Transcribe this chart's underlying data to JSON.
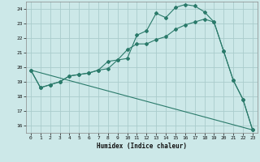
{
  "xlabel": "Humidex (Indice chaleur)",
  "bg_color": "#cce8e8",
  "grid_color": "#aacccc",
  "line_color": "#2a7a6a",
  "xlim": [
    -0.5,
    23.5
  ],
  "ylim": [
    15.5,
    24.5
  ],
  "xticks": [
    0,
    1,
    2,
    3,
    4,
    5,
    6,
    7,
    8,
    9,
    10,
    11,
    12,
    13,
    14,
    15,
    16,
    17,
    18,
    19,
    20,
    21,
    22,
    23
  ],
  "yticks": [
    16,
    17,
    18,
    19,
    20,
    21,
    22,
    23,
    24
  ],
  "line1_x": [
    0,
    1,
    2,
    3,
    4,
    5,
    6,
    7,
    8,
    9,
    10,
    11,
    12,
    13,
    14,
    15,
    16,
    17,
    18,
    19,
    20,
    21,
    22,
    23
  ],
  "line1_y": [
    19.8,
    18.6,
    18.8,
    19.0,
    19.4,
    19.5,
    19.6,
    19.8,
    19.9,
    20.5,
    20.6,
    22.2,
    22.5,
    23.7,
    23.4,
    24.1,
    24.3,
    24.2,
    23.8,
    23.1,
    21.1,
    19.1,
    17.8,
    15.7
  ],
  "line2_x": [
    0,
    1,
    2,
    3,
    4,
    5,
    6,
    7,
    8,
    9,
    10,
    11,
    12,
    13,
    14,
    15,
    16,
    17,
    18,
    19,
    20,
    21,
    22,
    23
  ],
  "line2_y": [
    19.8,
    18.6,
    18.8,
    19.0,
    19.4,
    19.5,
    19.6,
    19.8,
    20.4,
    20.5,
    21.2,
    21.6,
    21.6,
    21.9,
    22.1,
    22.6,
    22.9,
    23.1,
    23.3,
    23.1,
    21.1,
    19.1,
    17.8,
    15.7
  ],
  "line3_x": [
    0,
    23
  ],
  "line3_y": [
    19.8,
    15.7
  ]
}
